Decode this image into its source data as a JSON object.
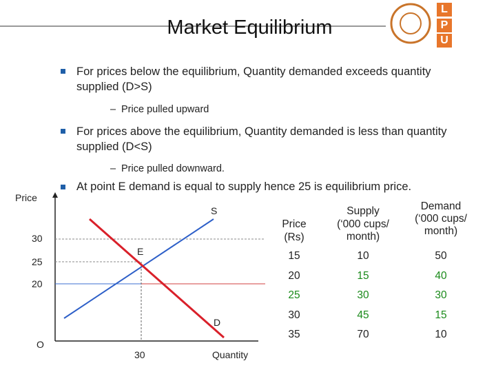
{
  "header": {
    "title": "Market Equilibrium",
    "logo": [
      "L",
      "P",
      "U"
    ]
  },
  "bullets": [
    {
      "text": [
        "For prices below the equilibrium, Quantity demanded exceeds quantity",
        "supplied (D>S)"
      ],
      "sub": "Price pulled upward"
    },
    {
      "text": [
        "For prices above the equilibrium, Quantity demanded is less than quantity",
        "supplied (D<S)"
      ],
      "sub": "Price pulled downward."
    },
    {
      "text": [
        "At point E demand is equal to supply hence 25 is equilibrium price."
      ]
    }
  ],
  "diagram": {
    "y_label": "Price",
    "x_label": "Quantity",
    "origin": "O",
    "y_ticks": [
      "30",
      "25",
      "20"
    ],
    "x_ticks": [
      "30"
    ],
    "supply_label": "S",
    "demand_label": "D",
    "point_label": "E"
  },
  "table": {
    "headers": [
      [
        "Price",
        "(Rs)"
      ],
      [
        "Supply",
        "(‘000 cups/",
        "month)"
      ],
      [
        "Demand",
        "(‘000 cups/",
        "month)"
      ]
    ],
    "rows": [
      [
        "15",
        "10",
        "50"
      ],
      [
        "20",
        "15",
        "40"
      ],
      [
        "25",
        "30",
        "30"
      ],
      [
        "30",
        "45",
        "15"
      ],
      [
        "35",
        "70",
        "10"
      ]
    ]
  }
}
